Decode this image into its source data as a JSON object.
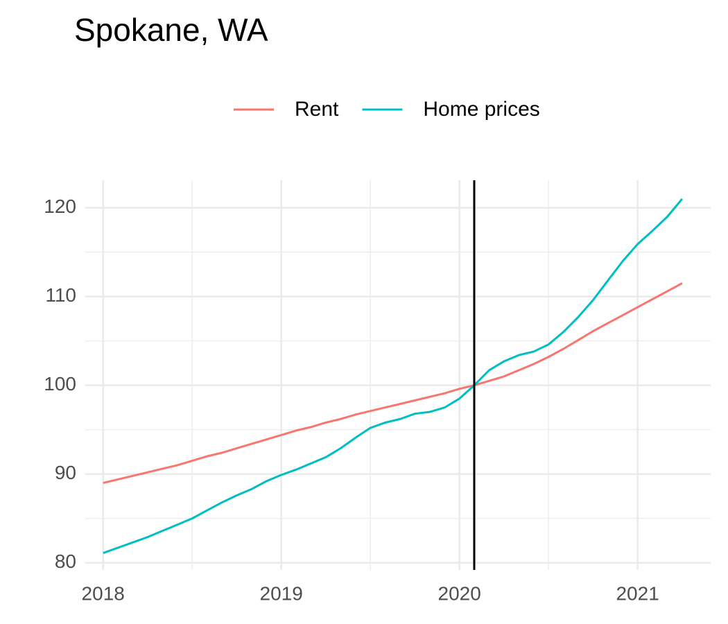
{
  "chart_data": {
    "type": "line",
    "title": "Spokane, WA",
    "x": [
      2018,
      2018.083,
      2018.167,
      2018.25,
      2018.333,
      2018.417,
      2018.5,
      2018.583,
      2018.667,
      2018.75,
      2018.833,
      2018.917,
      2019,
      2019.083,
      2019.167,
      2019.25,
      2019.333,
      2019.417,
      2019.5,
      2019.583,
      2019.667,
      2019.75,
      2019.833,
      2019.917,
      2020,
      2020.083,
      2020.167,
      2020.25,
      2020.333,
      2020.417,
      2020.5,
      2020.583,
      2020.667,
      2020.75,
      2020.833,
      2020.917,
      2021,
      2021.083,
      2021.167,
      2021.25
    ],
    "series": [
      {
        "name": "Rent",
        "color": "#f8766d",
        "values": [
          89.0,
          89.4,
          89.8,
          90.2,
          90.6,
          91.0,
          91.5,
          92.0,
          92.4,
          92.9,
          93.4,
          93.9,
          94.4,
          94.9,
          95.3,
          95.8,
          96.2,
          96.7,
          97.1,
          97.5,
          97.9,
          98.3,
          98.7,
          99.1,
          99.6,
          100,
          100.5,
          101.0,
          101.7,
          102.4,
          103.2,
          104.1,
          105.1,
          106.1,
          107.0,
          107.9,
          108.8,
          109.7,
          110.6,
          111.5
        ]
      },
      {
        "name": "Home prices",
        "color": "#00bfc4",
        "values": [
          81.1,
          81.7,
          82.3,
          82.9,
          83.6,
          84.3,
          85.0,
          85.9,
          86.8,
          87.6,
          88.3,
          89.2,
          89.9,
          90.5,
          91.2,
          91.9,
          92.9,
          94.1,
          95.2,
          95.8,
          96.2,
          96.8,
          97.0,
          97.5,
          98.5,
          100,
          101.7,
          102.7,
          103.4,
          103.8,
          104.6,
          106.0,
          107.7,
          109.6,
          111.8,
          114.0,
          115.9,
          117.4,
          119.0,
          121.0
        ]
      }
    ],
    "vline": 2020.083,
    "xlim": [
      2017.9,
      2021.41
    ],
    "xticks": [
      2018,
      2019,
      2020,
      2021
    ],
    "ylim": [
      79.2,
      123.1
    ],
    "yticks": [
      80,
      90,
      100,
      110,
      120
    ],
    "grid": true
  }
}
